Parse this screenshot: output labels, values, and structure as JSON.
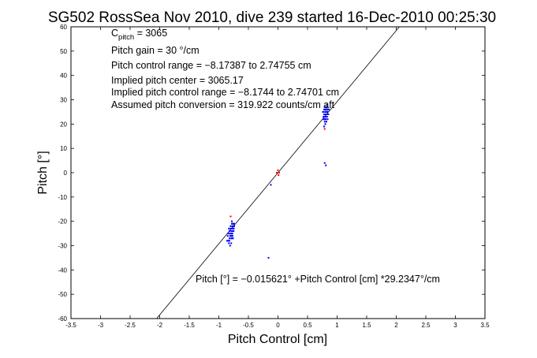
{
  "chart_data": {
    "type": "scatter",
    "title": "SG502 RossSea Nov 2010, dive 239 started 16-Dec-2010 00:25:30",
    "xlabel": "Pitch Control [cm]",
    "ylabel": "Pitch [°]",
    "xlim": [
      -3.5,
      3.5
    ],
    "ylim": [
      -60,
      60
    ],
    "xticks": [
      "-3.5",
      "-3",
      "-2.5",
      "-2",
      "-1.5",
      "-1",
      "-0.5",
      "0",
      "0.5",
      "1",
      "1.5",
      "2",
      "2.5",
      "3",
      "3.5"
    ],
    "yticks": [
      "60",
      "50",
      "40",
      "30",
      "20",
      "10",
      "0",
      "-10",
      "-20",
      "-30",
      "-40",
      "-50",
      "-60"
    ],
    "grid": false,
    "annotations": {
      "c_pitch_main": "C",
      "c_pitch_sub": "pitch",
      "c_pitch_value": " = 3065",
      "pitch_gain": "Pitch gain = 30 °/cm",
      "control_range": "Pitch control range = −8.17387 to 2.74755 cm",
      "implied_center": "Implied pitch center = 3065.17",
      "implied_range": "Implied pitch control range = −8.1744 to 2.74701 cm",
      "conversion": "Assumed pitch conversion = 319.922 counts/cm aft",
      "fit_equation": "Pitch [°] = −0.015621° +Pitch Control [cm] *29.2347°/cm"
    },
    "fit_line": {
      "intercept": -0.015621,
      "slope": 29.2347,
      "color": "#000000"
    },
    "series": [
      {
        "color": "#0000ff",
        "x": [
          -0.8,
          -0.79,
          -0.78,
          -0.77,
          -0.76,
          -0.75,
          -0.74,
          -0.8,
          -0.78,
          -0.76,
          -0.82,
          -0.84,
          -0.79,
          -0.77,
          -0.75,
          -0.78,
          -0.81,
          -0.83,
          -0.76,
          -0.74,
          -0.79,
          -0.77,
          -0.8,
          -0.78,
          -0.76,
          -0.82,
          -0.85,
          -0.86,
          -0.8,
          -0.78,
          -0.75,
          -0.77,
          -0.79,
          -0.81,
          -0.83,
          -0.76,
          -0.78,
          -0.8,
          -0.74,
          -0.76,
          -0.84,
          -0.82,
          -0.79,
          -0.81,
          -0.77,
          -0.75,
          -0.16,
          -0.12,
          0.78,
          0.8,
          0.82,
          0.84,
          0.79,
          0.81,
          0.83,
          0.77,
          0.8,
          0.82,
          0.84,
          0.86,
          0.78,
          0.8,
          0.82,
          0.79,
          0.81,
          0.83,
          0.85,
          0.8,
          0.82,
          0.84,
          0.78,
          0.76,
          0.79,
          0.81,
          0.83,
          0.8,
          0.82,
          0.77,
          0.79,
          0.81,
          0.83,
          0.8,
          0.84,
          0.82,
          0.78,
          0.8,
          0.81,
          0.79,
          0.77,
          0.83,
          0.85,
          0.82,
          0.8,
          0.78,
          0.8,
          0.81
        ],
        "y": [
          -22,
          -23,
          -24,
          -22,
          -21,
          -23,
          -22,
          -25,
          -26,
          -24,
          -27,
          -28,
          -25,
          -23,
          -24,
          -27,
          -26,
          -29,
          -22,
          -21,
          -24,
          -26,
          -23,
          -25,
          -27,
          -24,
          -26,
          -28,
          -22,
          -21,
          -23,
          -25,
          -27,
          -25,
          -23,
          -21,
          -20,
          -26,
          -22,
          -24,
          -25,
          -28,
          -29,
          -30,
          -26,
          -23,
          -35,
          -5,
          24,
          25,
          26,
          27,
          23,
          24,
          25,
          22,
          26,
          27,
          25,
          26,
          23,
          24,
          25,
          21,
          22,
          23,
          24,
          20,
          21,
          22,
          26,
          25,
          27,
          26,
          28,
          25,
          24,
          23,
          22,
          24,
          25,
          23,
          26,
          27,
          19,
          20,
          3,
          4,
          25,
          26,
          24,
          23,
          22,
          24,
          26,
          25
        ]
      },
      {
        "color": "#ff0000",
        "x": [
          -0.02,
          0.0,
          0.02,
          0.01,
          -0.8,
          0.79
        ],
        "y": [
          0,
          1,
          0,
          -1,
          -18,
          18
        ]
      }
    ]
  }
}
